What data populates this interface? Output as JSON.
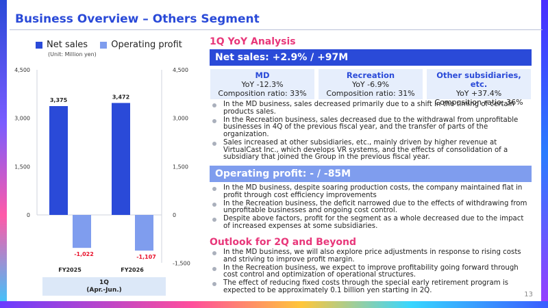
{
  "title": "Business Overview – Others Segment",
  "page_number": "13",
  "legend": [
    {
      "label": "Net sales",
      "color": "#2a4ad8"
    },
    {
      "label": "Operating profit",
      "color": "#7f9dee"
    }
  ],
  "unit_label": "(Unit: Million yen)",
  "chart_footer": {
    "line1": "1Q",
    "line2": "(Apr.-Jun.)"
  },
  "chart_data": {
    "type": "bar",
    "categories": [
      "FY2025",
      "FY2026"
    ],
    "series": [
      {
        "name": "Net sales",
        "values": [
          3375,
          3472
        ],
        "color": "#2a4ad8",
        "axis": "left"
      },
      {
        "name": "Operating profit",
        "values": [
          -1022,
          -1107
        ],
        "color": "#7f9dee",
        "axis": "right"
      }
    ],
    "data_labels": {
      "net_sales": [
        "3,375",
        "3,472"
      ],
      "operating_profit": [
        "-1,022",
        "-1,107"
      ]
    },
    "left_axis": {
      "ylim": [
        0,
        4500
      ],
      "ticks": [
        0,
        1500,
        3000,
        4500
      ],
      "tick_labels": [
        "0",
        "1,500",
        "3,000",
        "4,500"
      ]
    },
    "right_axis": {
      "ylim": [
        -1500,
        4500
      ],
      "ticks": [
        -1500,
        0,
        1500,
        3000,
        4500
      ],
      "tick_labels": [
        "-1,500",
        "0",
        "1,500",
        "3,000",
        "4,500"
      ]
    },
    "grid": false
  },
  "analysis": {
    "heading": "1Q YoY Analysis",
    "net_sales_header": "Net sales: +2.9% / +97M",
    "segments": [
      {
        "name": "MD",
        "yoy": "YoY -12.3%",
        "ratio": "Composition ratio: 33%"
      },
      {
        "name": "Recreation",
        "yoy": "YoY -6.9%",
        "ratio": "Composition ratio: 31%"
      },
      {
        "name": "Other subsidiaries, etc.",
        "yoy": "YoY +37.4%",
        "ratio": "Composition ratio: 36%"
      }
    ],
    "net_sales_bullets": [
      "In the MD business, sales decreased primarily due to a shift in the timing of certain products sales.",
      "In the Recreation business, sales decreased due to the withdrawal from unprofitable businesses in 4Q of the previous fiscal year, and the transfer of parts of the organization.",
      "Sales increased at other subsidiaries, etc., mainly driven by higher revenue at VirtualCast Inc., which develops VR systems, and the effects of consolidation of a subsidiary that joined the Group in the previous fiscal year."
    ],
    "op_header": "Operating profit: - / -85M",
    "op_bullets": [
      "In the MD business, despite soaring production costs, the company maintained flat in profit through cost efficiency improvements",
      "In the Recreation business, the deficit narrowed due to the effects of withdrawing from unprofitable businesses and ongoing cost control.",
      "Despite above factors, profit for the segment as a whole decreased due to the impact of increased expenses at some subsidiaries."
    ]
  },
  "outlook": {
    "heading": "Outlook for 2Q and Beyond",
    "bullets": [
      "In the MD business, we will also explore price adjustments in response to rising costs and striving to improve profit margin.",
      "In the Recreation business, we expect to improve profitability going forward through cost control and optimization of operational structures.",
      "The effect of reducing fixed costs through the special early retirement program is expected to be approximately 0.1 billion yen starting in 2Q."
    ]
  }
}
